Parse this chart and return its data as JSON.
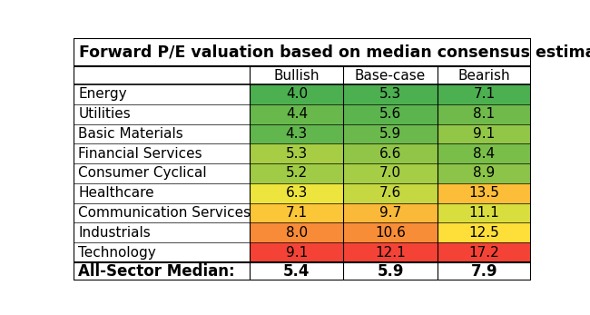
{
  "title": "Forward P/E valuation based on median consensus estimates",
  "columns": [
    "Bullish",
    "Base-case",
    "Bearish"
  ],
  "rows": [
    {
      "sector": "Energy",
      "values": [
        4.0,
        5.3,
        7.1
      ]
    },
    {
      "sector": "Utilities",
      "values": [
        4.4,
        5.6,
        8.1
      ]
    },
    {
      "sector": "Basic Materials",
      "values": [
        4.3,
        5.9,
        9.1
      ]
    },
    {
      "sector": "Financial Services",
      "values": [
        5.3,
        6.6,
        8.4
      ]
    },
    {
      "sector": "Consumer Cyclical",
      "values": [
        5.2,
        7.0,
        8.9
      ]
    },
    {
      "sector": "Healthcare",
      "values": [
        6.3,
        7.6,
        13.5
      ]
    },
    {
      "sector": "Communication Services",
      "values": [
        7.1,
        9.7,
        11.1
      ]
    },
    {
      "sector": "Industrials",
      "values": [
        8.0,
        10.6,
        12.5
      ]
    },
    {
      "sector": "Technology",
      "values": [
        9.1,
        12.1,
        17.2
      ]
    }
  ],
  "footer": {
    "sector": "All-Sector Median:",
    "values": [
      5.4,
      5.9,
      7.9
    ]
  },
  "col_mins": [
    4.0,
    5.3,
    7.1
  ],
  "col_maxs": [
    9.1,
    12.1,
    17.2
  ],
  "title_fontsize": 12.5,
  "header_fontsize": 11,
  "cell_fontsize": 11,
  "footer_fontsize": 12
}
